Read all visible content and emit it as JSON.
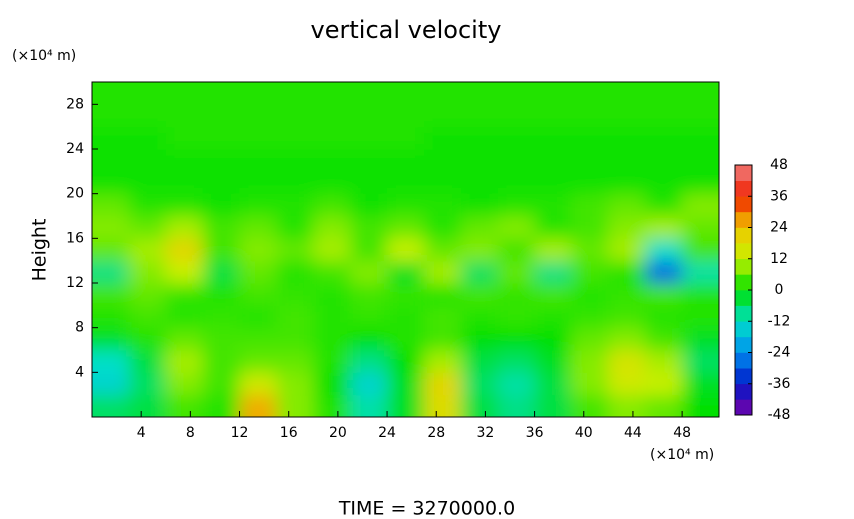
{
  "chart_data": {
    "type": "contour",
    "title": "vertical velocity",
    "ylabel": "Height",
    "xunit": "(×10⁴ m)",
    "yunit": "(×10⁴ m)",
    "footer": "TIME = 3270000.0",
    "xlim": [
      0,
      51
    ],
    "ylim": [
      0,
      30
    ],
    "xticks": [
      4,
      8,
      12,
      16,
      20,
      24,
      28,
      32,
      36,
      40,
      44,
      48
    ],
    "yticks": [
      4,
      8,
      12,
      16,
      20,
      24,
      28
    ],
    "x": [
      1.5,
      4.5,
      7.5,
      10.5,
      13.5,
      16.5,
      19.5,
      22.5,
      25.5,
      28.5,
      31.5,
      34.5,
      37.5,
      40.5,
      43.5,
      46.5,
      49.5
    ],
    "y": [
      1,
      3,
      5,
      7,
      9,
      11,
      13,
      15,
      17,
      19,
      21,
      23,
      25,
      27,
      29
    ],
    "z": [
      [
        -6,
        -4,
        4,
        2,
        26,
        8,
        2,
        -10,
        -2,
        18,
        -4,
        -8,
        -4,
        4,
        8,
        6,
        0
      ],
      [
        -14,
        -6,
        8,
        4,
        14,
        8,
        0,
        -14,
        -2,
        20,
        -6,
        -10,
        -4,
        8,
        14,
        12,
        -2
      ],
      [
        -12,
        -4,
        10,
        4,
        6,
        6,
        2,
        -8,
        0,
        10,
        -4,
        -6,
        -2,
        8,
        16,
        10,
        -6
      ],
      [
        -2,
        2,
        6,
        4,
        4,
        4,
        2,
        0,
        2,
        4,
        0,
        0,
        0,
        6,
        8,
        4,
        -2
      ],
      [
        2,
        4,
        2,
        3,
        2,
        4,
        2,
        3,
        2,
        4,
        2,
        3,
        2,
        3,
        4,
        2,
        2
      ],
      [
        4,
        6,
        3,
        2,
        4,
        3,
        2,
        4,
        3,
        2,
        4,
        3,
        4,
        2,
        3,
        4,
        2
      ],
      [
        -8,
        8,
        12,
        -4,
        6,
        2,
        4,
        8,
        -2,
        10,
        -6,
        6,
        -8,
        4,
        2,
        -28,
        -10
      ],
      [
        6,
        10,
        20,
        4,
        8,
        6,
        10,
        4,
        12,
        6,
        8,
        4,
        10,
        6,
        10,
        -12,
        4
      ],
      [
        8,
        6,
        10,
        4,
        6,
        2,
        8,
        4,
        6,
        2,
        6,
        8,
        2,
        4,
        8,
        10,
        6
      ],
      [
        6,
        2,
        2,
        1,
        2,
        2,
        4,
        1,
        2,
        2,
        1,
        2,
        2,
        4,
        6,
        2,
        8
      ],
      [
        1,
        1,
        1,
        1,
        1,
        1,
        1,
        1,
        1,
        1,
        1,
        1,
        1,
        1,
        1,
        1,
        1
      ],
      [
        1,
        1,
        1,
        1,
        1,
        1,
        1,
        1,
        1,
        1,
        1,
        1,
        1,
        1,
        1,
        1,
        1
      ],
      [
        1,
        1,
        2,
        2,
        2,
        2,
        2,
        2,
        2,
        1,
        1,
        1,
        1,
        1,
        1,
        1,
        1
      ],
      [
        2,
        2,
        2,
        2,
        2,
        2,
        2,
        2,
        2,
        2,
        2,
        2,
        2,
        2,
        2,
        2,
        2
      ],
      [
        2,
        2,
        2,
        2,
        2,
        2,
        2,
        2,
        2,
        2,
        2,
        2,
        2,
        2,
        2,
        2,
        2
      ]
    ],
    "cticks": [
      -48,
      -36,
      -24,
      -12,
      0,
      12,
      24,
      36,
      48
    ],
    "colormap": [
      "#7a00a8",
      "#0018c8",
      "#0090f0",
      "#00e0c8",
      "#00e000",
      "#c8f000",
      "#f0c800",
      "#f02000",
      "#f08080"
    ]
  }
}
